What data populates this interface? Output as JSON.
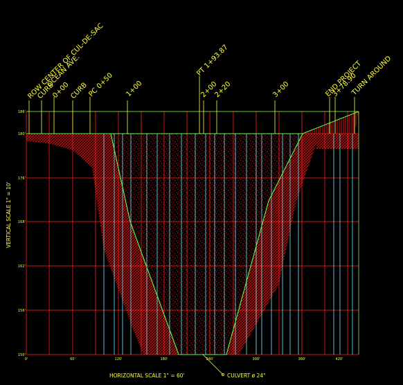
{
  "colors": {
    "background": "#000000",
    "grid": "#ff2020",
    "station_lines": "#80e8ff",
    "profile": "#55ff55",
    "text": "#ffff33",
    "hatch": "#e01010"
  },
  "horizontal_scale_label": "HORIZONTAL SCALE 1\" = 60'",
  "vertical_scale_label": "VERTICAL SCALE 1\" = 10'",
  "culvert_label": "CULVERT ø 24\"",
  "elevation_ticks": [
    "186'",
    "180'",
    "176'",
    "168'",
    "162'",
    "156'",
    "150'"
  ],
  "station_ticks": [
    "0'",
    "60'",
    "120'",
    "180'",
    "240'",
    "300'",
    "360'",
    "420'"
  ],
  "station_labels": [
    {
      "text": "ROW  CENTER OF CUL-DE-SAC"
    },
    {
      "text": "OCEAN AVE."
    },
    {
      "text": "0+00"
    },
    {
      "text": "CURB"
    },
    {
      "text": "CURB"
    },
    {
      "text": "PC 0+50"
    },
    {
      "text": "1+00"
    },
    {
      "text": "PT 1+93.87"
    },
    {
      "text": "2+00"
    },
    {
      "text": "2+20"
    },
    {
      "text": "3+00"
    },
    {
      "text": "END PROJECT"
    },
    {
      "text": "3+78.90"
    },
    {
      "text": "TURN AROUND"
    }
  ]
}
